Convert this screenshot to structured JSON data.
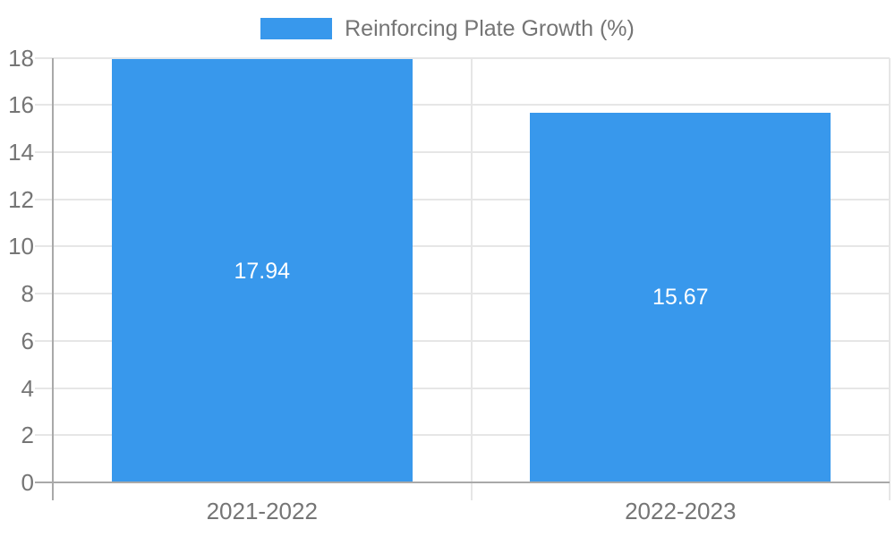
{
  "chart_data": {
    "type": "bar",
    "title": "",
    "xlabel": "",
    "ylabel": "",
    "series_name": "Reinforcing Plate Growth (%)",
    "categories": [
      "2021-2022",
      "2022-2023"
    ],
    "values": [
      17.94,
      15.67
    ],
    "value_labels": [
      "17.94",
      "15.67"
    ],
    "ylim": [
      0,
      18
    ],
    "ytick_step": 2,
    "ytick_labels": [
      "0",
      "2",
      "4",
      "6",
      "8",
      "10",
      "12",
      "14",
      "16",
      "18"
    ],
    "grid": true,
    "legend_position": "top-center",
    "bar_label_position": "center-of-bar",
    "colors": {
      "bar": "#3898EC",
      "axis_line": "#A9A9A9",
      "gridline": "#E6E6E6",
      "tick_text": "#757575",
      "data_label_text": "#FFFFFF",
      "background": "#FFFFFF"
    }
  }
}
